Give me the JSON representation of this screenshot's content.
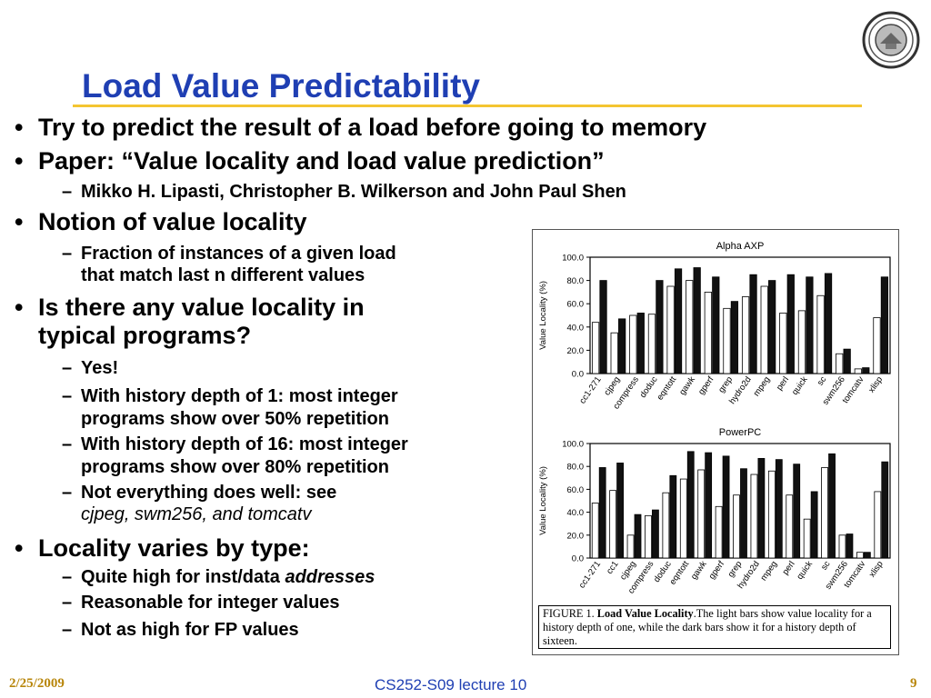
{
  "title": "Load Value Predictability",
  "bullets": {
    "b1": "Try to predict the result of a load before going to memory",
    "b2": "Paper: “Value locality and load value prediction”",
    "b2_sub": "Mikko H. Lipasti, Christopher B. Wilkerson and John Paul Shen",
    "b3": "Notion of value locality",
    "b3_sub_l1": "Fraction of instances of a given load",
    "b3_sub_l2": "that match last n different values",
    "b4_l1": "Is there any value locality in",
    "b4_l2": "typical programs?",
    "b4_s1": "Yes!",
    "b4_s2_l1": "With history depth of 1: most integer",
    "b4_s2_l2": "programs show over 50% repetition",
    "b4_s3_l1": "With history depth of 16: most integer",
    "b4_s3_l2": "programs show over 80% repetition",
    "b4_s4_l1": "Not everything does well: see",
    "b4_s4_l2": "cjpeg, swm256, and tomcatv",
    "b5": "Locality varies by type:",
    "b5_s1_pre": "Quite high for inst/data ",
    "b5_s1_em": "addresses",
    "b5_s2": "Reasonable for integer values",
    "b5_s3": "Not as high for FP values"
  },
  "caption": {
    "prefix": "FIGURE 1. ",
    "bold": "Load Value Locality",
    "rest": ".The light bars show value locality for a history depth of one, while the dark bars show it for a history depth of sixteen."
  },
  "footer": {
    "date": "2/25/2009",
    "center": "CS252-S09 lecture 10",
    "page": "9"
  },
  "colors": {
    "title": "#1f3fb3",
    "rule": "#f4c531",
    "footer_accent": "#b8860b"
  },
  "chart_data": [
    {
      "type": "bar",
      "title": "Alpha AXP",
      "ylabel": "Value Locality (%)",
      "ylim": [
        0,
        100
      ],
      "yticks": [
        "0.0",
        "20.0",
        "40.0",
        "60.0",
        "80.0",
        "100.0"
      ],
      "categories": [
        "cc1-271",
        "cjpeg",
        "compress",
        "doduc",
        "eqntott",
        "gawk",
        "gperf",
        "grep",
        "hydro2d",
        "mpeg",
        "perl",
        "quick",
        "sc",
        "swm256",
        "tomcatv",
        "xlisp"
      ],
      "series": [
        {
          "values": [
            44,
            35,
            50,
            51,
            75,
            80,
            70,
            56,
            66,
            75,
            52,
            54,
            67,
            17,
            4,
            48
          ]
        },
        {
          "values": [
            80,
            47,
            52,
            80,
            90,
            91,
            83,
            62,
            85,
            80,
            85,
            83,
            86,
            21,
            5,
            83
          ]
        }
      ]
    },
    {
      "type": "bar",
      "title": "PowerPC",
      "ylabel": "Value Locality (%)",
      "ylim": [
        0,
        100
      ],
      "yticks": [
        "0.0",
        "20.0",
        "40.0",
        "60.0",
        "80.0",
        "100.0"
      ],
      "categories": [
        "cc1-271",
        "cc1",
        "cjpeg",
        "compress",
        "doduc",
        "eqntott",
        "gawk",
        "gperf",
        "grep",
        "hydro2d",
        "mpeg",
        "perl",
        "quick",
        "sc",
        "swm256",
        "tomcatv",
        "xlisp"
      ],
      "series": [
        {
          "values": [
            48,
            59,
            20,
            37,
            57,
            69,
            77,
            45,
            55,
            73,
            76,
            55,
            34,
            79,
            20,
            5,
            58
          ]
        },
        {
          "values": [
            79,
            83,
            38,
            42,
            72,
            93,
            92,
            89,
            78,
            87,
            86,
            82,
            58,
            91,
            21,
            5,
            84
          ]
        }
      ]
    }
  ]
}
